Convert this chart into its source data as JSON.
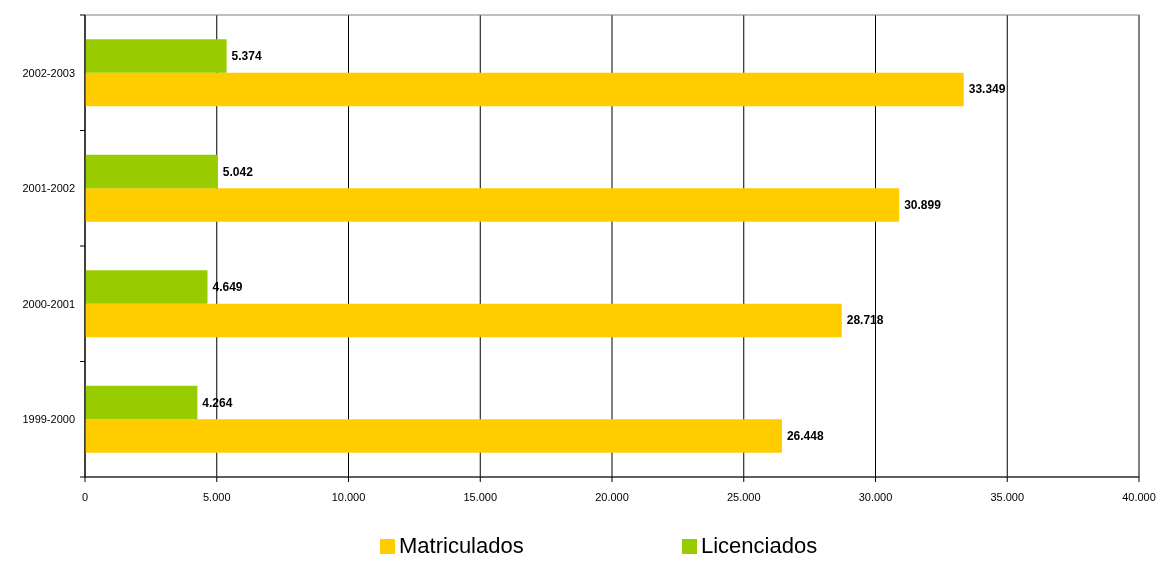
{
  "chart_data": {
    "type": "bar",
    "orientation": "horizontal",
    "categories": [
      "2002-2003",
      "2001-2002",
      "2000-2001",
      "1999-2000"
    ],
    "series": [
      {
        "name": "Matriculados",
        "color": "#ffcc00",
        "values": [
          33349,
          30899,
          28718,
          26448
        ],
        "value_labels": [
          "33.349",
          "30.899",
          "28.718",
          "26.448"
        ]
      },
      {
        "name": "Licenciados",
        "color": "#99cc00",
        "values": [
          5374,
          5042,
          4649,
          4264
        ],
        "value_labels": [
          "5.374",
          "5.042",
          "4.649",
          "4.264"
        ]
      }
    ],
    "xlim": [
      0,
      40000
    ],
    "xticks": [
      0,
      {
        "value": 5000,
        "label": "5.000"
      },
      {
        "value": 10000,
        "label": "10.000"
      },
      {
        "value": 15000,
        "label": "15.000"
      },
      {
        "value": 20000,
        "label": "20.000"
      },
      {
        "value": 25000,
        "label": "25.000"
      },
      {
        "value": 30000,
        "label": "30.000"
      },
      {
        "value": 35000,
        "label": "35.000"
      },
      {
        "value": 40000,
        "label": "40.000"
      }
    ],
    "grid": "x",
    "legend": "bottom"
  }
}
